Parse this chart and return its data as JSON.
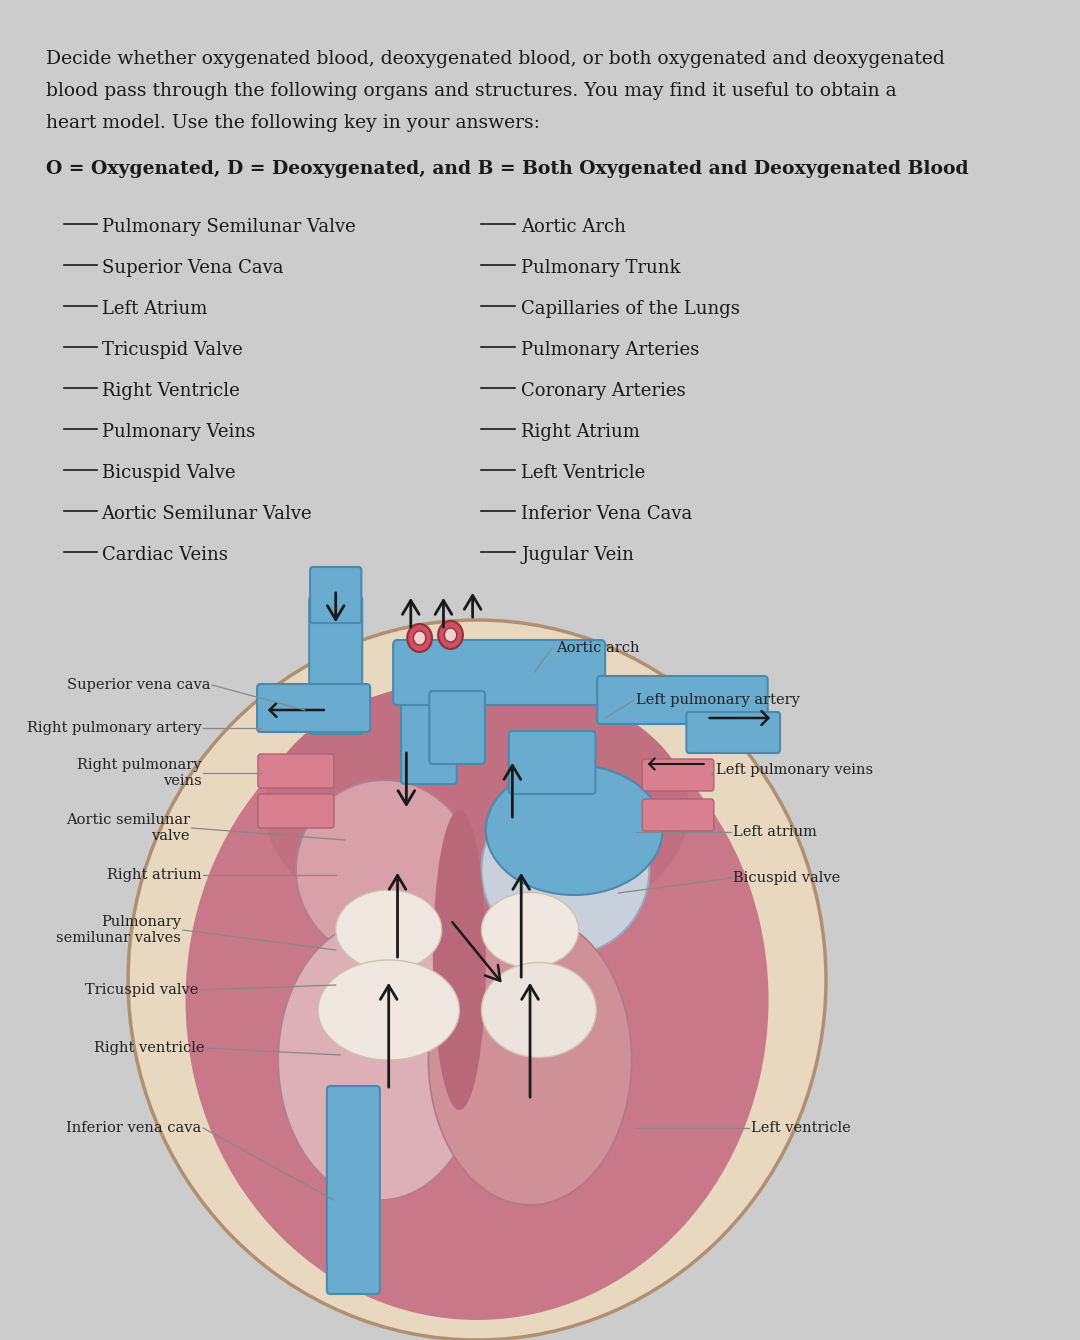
{
  "bg_color": "#cccccc",
  "text_color": "#1a1a1a",
  "intro_lines": [
    "Decide whether oxygenated blood, deoxygenated blood, or both oxygenated and deoxygenated",
    "blood pass through the following organs and structures. You may find it useful to obtain a",
    "heart model. Use the following key in your answers:"
  ],
  "key_text": "O = Oxygenated, D = Deoxygenated, and B = Both Oxygenated and Deoxygenated Blood",
  "left_column": [
    "Pulmonary Semilunar Valve",
    "Superior Vena Cava",
    "Left Atrium",
    "Tricuspid Valve",
    "Right Ventricle",
    "Pulmonary Veins",
    "Bicuspid Valve",
    "Aortic Semilunar Valve",
    "Cardiac Veins"
  ],
  "right_column": [
    "Aortic Arch",
    "Pulmonary Trunk",
    "Capillaries of the Lungs",
    "Pulmonary Arteries",
    "Coronary Arteries",
    "Right Atrium",
    "Left Ventricle",
    "Inferior Vena Cava",
    "Jugular Vein"
  ],
  "heart_bg_color": "#d4c4b0",
  "heart_outer_edge": "#b8a898",
  "heart_pink": "#d4909a",
  "heart_dark_pink": "#c06070",
  "heart_red": "#b84050",
  "heart_light_pink": "#e0b0bc",
  "heart_pale": "#e8d0d8",
  "blue_vessel": "#6aaccf",
  "blue_vessel_dark": "#4a8aaf",
  "pink_vessel": "#d88090",
  "arrow_color": "#1a1a1a",
  "label_line_color": "#888888",
  "label_color": "#222222"
}
